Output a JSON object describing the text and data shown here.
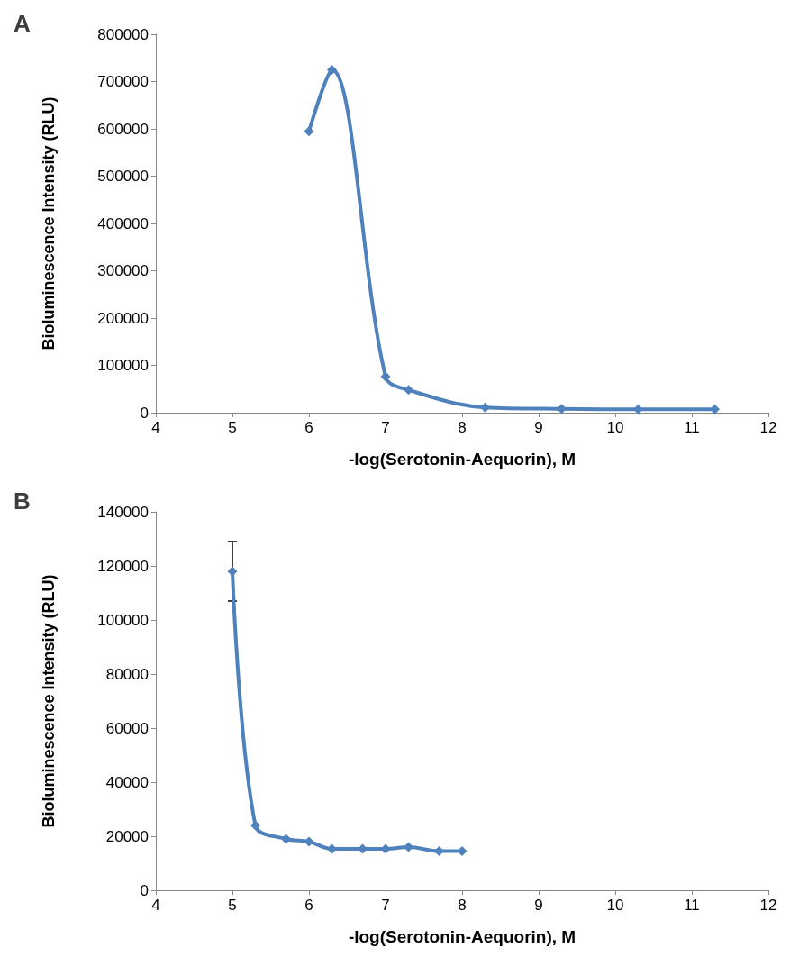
{
  "chart_data": [
    {
      "type": "line",
      "title": "A",
      "xlabel": "-log(Serotonin-Aequorin), M",
      "ylabel": "Bioluminescence Intensity (RLU)",
      "x": [
        6,
        6.3,
        7,
        7.3,
        8.3,
        9.3,
        10.3,
        11.3
      ],
      "series": [
        {
          "color": "#4f81bd",
          "values": [
            595000,
            725000,
            76000,
            48000,
            11000,
            8000,
            7000,
            7000
          ]
        }
      ],
      "xlim": [
        4,
        12
      ],
      "xticks": [
        4,
        5,
        6,
        7,
        8,
        9,
        10,
        11,
        12
      ],
      "ylim": [
        0,
        800000
      ],
      "yticks": [
        0,
        100000,
        200000,
        300000,
        400000,
        500000,
        600000,
        700000,
        800000
      ],
      "marker": "diamond",
      "line_style": "solid"
    },
    {
      "type": "line",
      "title": "B",
      "xlabel": "-log(Serotonin-Aequorin), M",
      "ylabel": "Bioluminescence Intensity (RLU)",
      "x": [
        5,
        5.3,
        5.7,
        6,
        6.3,
        6.7,
        7,
        7.3,
        7.7,
        8
      ],
      "series": [
        {
          "color": "#4f81bd",
          "values": [
            118000,
            24000,
            19000,
            18000,
            15300,
            15300,
            15300,
            16000,
            14500,
            14500
          ],
          "errors": [
            [
              107000,
              129000
            ],
            null,
            null,
            null,
            null,
            null,
            null,
            null,
            null,
            null
          ]
        }
      ],
      "xlim": [
        4,
        12
      ],
      "xticks": [
        4,
        5,
        6,
        7,
        8,
        9,
        10,
        11,
        12
      ],
      "ylim": [
        0,
        140000
      ],
      "yticks": [
        0,
        20000,
        40000,
        60000,
        80000,
        100000,
        120000,
        140000
      ],
      "marker": "diamond",
      "line_style": "solid"
    }
  ]
}
